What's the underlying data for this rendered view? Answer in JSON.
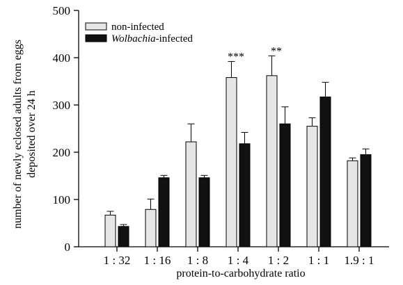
{
  "chart_data": {
    "type": "bar",
    "title": "",
    "xlabel": "protein-to-carbohydrate ratio",
    "ylabel_lines": [
      "number of newly eclosed adults from eggs",
      "deposited over 24 h"
    ],
    "categories": [
      "1 : 32",
      "1 : 16",
      "1 : 8",
      "1 : 4",
      "1 : 2",
      "1 : 1",
      "1.9 : 1"
    ],
    "ylim": [
      0,
      500
    ],
    "yticks": [
      0,
      100,
      200,
      300,
      400,
      500
    ],
    "grid": false,
    "legend_position": "top-left",
    "series": [
      {
        "name": "non-infected",
        "name_italic": "",
        "color": "#e6e6e6",
        "values": [
          67,
          79,
          222,
          358,
          362,
          255,
          182
        ],
        "errors": [
          8,
          22,
          38,
          34,
          42,
          18,
          6
        ]
      },
      {
        "name": "-infected",
        "name_italic": "Wolbachia",
        "color": "#111111",
        "values": [
          43,
          146,
          146,
          218,
          260,
          317,
          195
        ],
        "errors": [
          4,
          5,
          5,
          24,
          36,
          31,
          12
        ]
      }
    ],
    "annotations": [
      {
        "category_index": 3,
        "text": "***"
      },
      {
        "category_index": 4,
        "text": "**"
      }
    ]
  }
}
